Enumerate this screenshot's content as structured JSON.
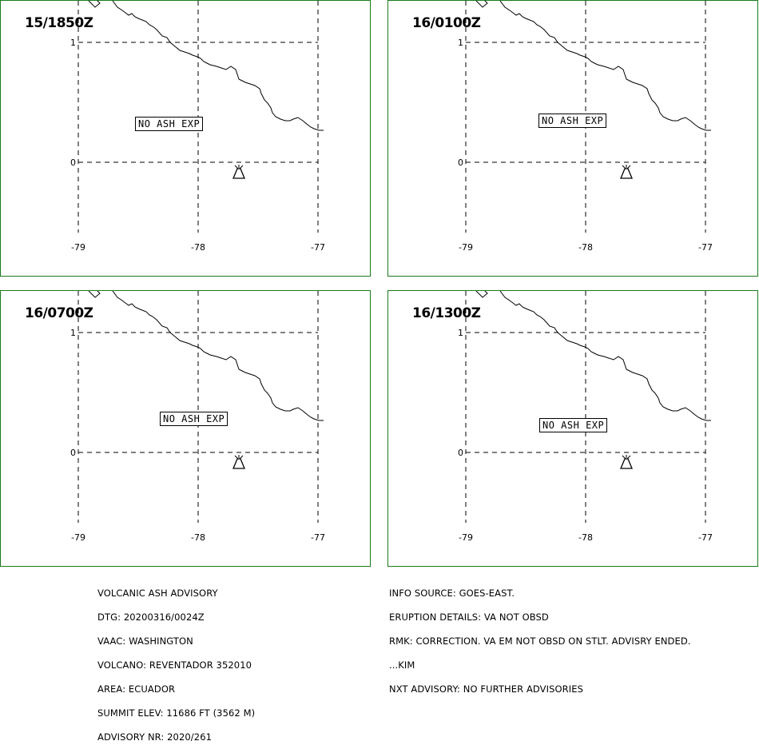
{
  "panels": [
    {
      "time": "15/1850Z",
      "ash_text": "NO ASH EXP",
      "ash_pos": "left"
    },
    {
      "time": "16/0100Z",
      "ash_text": "NO ASH EXP",
      "ash_pos": "center"
    },
    {
      "time": "16/0700Z",
      "ash_text": "NO ASH EXP",
      "ash_pos": "center"
    },
    {
      "time": "16/1300Z",
      "ash_text": "NO ASH EXP",
      "ash_pos": "right"
    }
  ],
  "grid": {
    "longitudes": [
      "-79",
      "-78",
      "-77"
    ],
    "latitudes": [
      "1",
      "0"
    ]
  },
  "volcano": {
    "lat": -0.08,
    "lon": -77.66,
    "icon": "volcano-icon"
  },
  "advisory_left": {
    "line1": "VOLCANIC ASH ADVISORY",
    "line2": "DTG: 20200316/0024Z",
    "line3": "VAAC: WASHINGTON",
    "line4": "VOLCANO: REVENTADOR 352010",
    "line5": "AREA: ECUADOR",
    "line6": "SUMMIT ELEV: 11686 FT (3562 M)",
    "line7": "ADVISORY NR: 2020/261"
  },
  "advisory_right": {
    "line1": "INFO SOURCE: GOES-EAST.",
    "line2": "ERUPTION DETAILS: VA NOT OBSD",
    "line3": "RMK: CORRECTION. VA EM NOT OBSD ON STLT. ADVISRY ENDED.",
    "line4": "...KIM",
    "line5": "NXT ADVISORY: NO FURTHER ADVISORIES"
  },
  "colors": {
    "panel_border": "#1a7a1a",
    "grid": "#000000"
  }
}
